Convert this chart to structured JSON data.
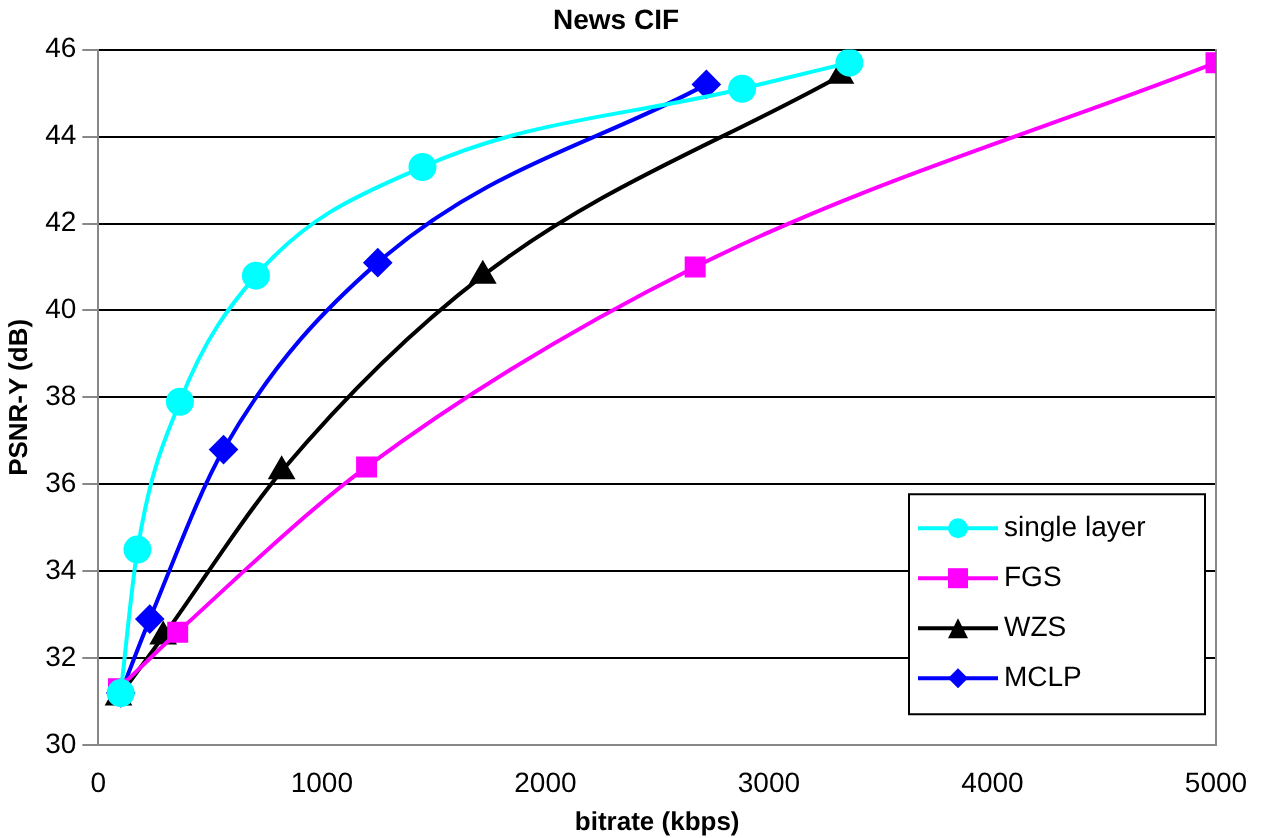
{
  "chart_data": {
    "type": "line",
    "title": "News CIF",
    "xlabel": "bitrate (kbps)",
    "ylabel": "PSNR-Y (dB)",
    "xlim": [
      0,
      5000
    ],
    "xticks": [
      0,
      1000,
      2000,
      3000,
      4000,
      5000
    ],
    "ylim": [
      30,
      46
    ],
    "yticks": [
      30,
      32,
      34,
      36,
      38,
      40,
      42,
      44,
      46
    ],
    "grid": "y",
    "legend": "bottom right",
    "line_style": "solid",
    "series": [
      {
        "name": "single layer",
        "color": "#00ffff",
        "marker": "circle",
        "x": [
          100,
          175,
          365,
          705,
          1450,
          2880,
          3360
        ],
        "values": [
          31.2,
          34.5,
          37.9,
          40.8,
          43.3,
          45.1,
          45.7
        ]
      },
      {
        "name": "FGS",
        "color": "#ff00ff",
        "marker": "square",
        "x": [
          90,
          355,
          1200,
          2670,
          5000
        ],
        "values": [
          31.3,
          32.6,
          36.4,
          41.0,
          45.7
        ]
      },
      {
        "name": "WZS",
        "color": "#000000",
        "marker": "triangle",
        "x": [
          90,
          290,
          820,
          1720,
          3320
        ],
        "values": [
          31.1,
          32.5,
          36.3,
          40.8,
          45.4
        ]
      },
      {
        "name": "MCLP",
        "color": "#0000ff",
        "marker": "diamond",
        "x": [
          100,
          230,
          560,
          1250,
          2720
        ],
        "values": [
          31.2,
          32.9,
          36.8,
          41.1,
          45.2
        ]
      }
    ]
  }
}
